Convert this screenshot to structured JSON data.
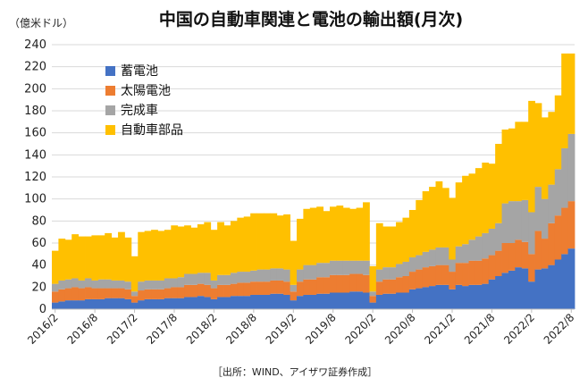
{
  "chart_data": {
    "type": "bar",
    "stacked": true,
    "title": "中国の自動車関連と電池の輸出額(月次)",
    "unit_label": "（億米ドル）",
    "source": "［出所：WIND、アイザワ証券作成］",
    "ylim": [
      0,
      240
    ],
    "yticks": [
      0,
      20,
      40,
      60,
      80,
      100,
      120,
      140,
      160,
      180,
      200,
      220,
      240
    ],
    "xtick_labels": [
      "2016/2",
      "2016/8",
      "2017/2",
      "2017/8",
      "2018/2",
      "2018/8",
      "2019/2",
      "2019/8",
      "2020/2",
      "2020/8",
      "2021/2",
      "2021/8",
      "2022/2",
      "2022/8"
    ],
    "grid": true,
    "legend_position": "top-left",
    "colors": {
      "battery": "#4472c4",
      "solar": "#ed7d31",
      "vehicle": "#a5a5a5",
      "parts": "#ffc000"
    },
    "x": [
      "2016/2",
      "2016/3",
      "2016/4",
      "2016/5",
      "2016/6",
      "2016/7",
      "2016/8",
      "2016/9",
      "2016/10",
      "2016/11",
      "2016/12",
      "2017/1",
      "2017/2",
      "2017/3",
      "2017/4",
      "2017/5",
      "2017/6",
      "2017/7",
      "2017/8",
      "2017/9",
      "2017/10",
      "2017/11",
      "2017/12",
      "2018/1",
      "2018/2",
      "2018/3",
      "2018/4",
      "2018/5",
      "2018/6",
      "2018/7",
      "2018/8",
      "2018/9",
      "2018/10",
      "2018/11",
      "2018/12",
      "2019/1",
      "2019/2",
      "2019/3",
      "2019/4",
      "2019/5",
      "2019/6",
      "2019/7",
      "2019/8",
      "2019/9",
      "2019/10",
      "2019/11",
      "2019/12",
      "2020/1",
      "2020/2",
      "2020/3",
      "2020/4",
      "2020/5",
      "2020/6",
      "2020/7",
      "2020/8",
      "2020/9",
      "2020/10",
      "2020/11",
      "2020/12",
      "2021/1",
      "2021/2",
      "2021/3",
      "2021/4",
      "2021/5",
      "2021/6",
      "2021/7",
      "2021/8",
      "2021/9",
      "2021/10",
      "2021/11",
      "2021/12",
      "2022/1",
      "2022/2",
      "2022/3",
      "2022/4",
      "2022/5",
      "2022/6",
      "2022/7",
      "2022/8"
    ],
    "series": [
      {
        "name": "蓄電池",
        "key": "battery",
        "values": [
          6,
          7,
          8,
          8,
          8,
          9,
          9,
          9,
          10,
          10,
          10,
          9,
          6,
          8,
          9,
          9,
          9,
          10,
          10,
          10,
          11,
          11,
          12,
          11,
          9,
          11,
          11,
          12,
          12,
          12,
          13,
          13,
          13,
          14,
          14,
          13,
          8,
          12,
          13,
          13,
          14,
          14,
          15,
          15,
          15,
          16,
          16,
          15,
          6,
          13,
          14,
          14,
          15,
          15,
          18,
          19,
          20,
          21,
          22,
          22,
          18,
          22,
          21,
          22,
          22,
          23,
          27,
          30,
          33,
          35,
          38,
          37,
          25,
          36,
          37,
          40,
          45,
          50,
          55
        ]
      },
      {
        "name": "太陽電池",
        "key": "solar",
        "values": [
          10,
          11,
          11,
          12,
          11,
          11,
          10,
          10,
          9,
          9,
          9,
          9,
          6,
          9,
          9,
          9,
          9,
          9,
          10,
          10,
          11,
          11,
          11,
          11,
          10,
          11,
          11,
          11,
          12,
          12,
          12,
          12,
          12,
          12,
          12,
          12,
          8,
          13,
          14,
          14,
          15,
          15,
          16,
          16,
          16,
          16,
          16,
          16,
          6,
          12,
          13,
          13,
          14,
          15,
          16,
          17,
          18,
          18,
          18,
          18,
          16,
          20,
          21,
          22,
          22,
          23,
          22,
          23,
          27,
          25,
          25,
          24,
          25,
          35,
          27,
          38,
          40,
          42,
          43
        ]
      },
      {
        "name": "完成車",
        "key": "vehicle",
        "values": [
          7,
          8,
          8,
          8,
          7,
          8,
          7,
          8,
          8,
          7,
          7,
          7,
          4,
          8,
          8,
          8,
          8,
          9,
          8,
          9,
          10,
          10,
          10,
          11,
          7,
          9,
          9,
          10,
          10,
          10,
          10,
          11,
          11,
          11,
          11,
          11,
          6,
          11,
          13,
          13,
          13,
          13,
          13,
          13,
          13,
          12,
          12,
          13,
          4,
          11,
          11,
          11,
          12,
          13,
          13,
          13,
          14,
          15,
          16,
          16,
          11,
          15,
          17,
          19,
          22,
          23,
          24,
          25,
          36,
          38,
          35,
          38,
          38,
          40,
          36,
          35,
          42,
          54,
          61
        ]
      },
      {
        "name": "自動車部品",
        "key": "parts",
        "values": [
          30,
          38,
          36,
          40,
          40,
          38,
          41,
          40,
          42,
          39,
          44,
          40,
          32,
          45,
          45,
          46,
          45,
          44,
          48,
          46,
          44,
          42,
          44,
          46,
          46,
          48,
          45,
          47,
          49,
          50,
          52,
          51,
          51,
          50,
          48,
          50,
          40,
          46,
          51,
          52,
          51,
          47,
          49,
          50,
          48,
          47,
          48,
          53,
          23,
          42,
          37,
          37,
          38,
          40,
          43,
          50,
          55,
          57,
          60,
          54,
          56,
          58,
          62,
          60,
          62,
          64,
          59,
          72,
          67,
          66,
          72,
          71,
          101,
          76,
          74,
          66,
          67,
          86,
          73
        ]
      }
    ],
    "legend": [
      "蓄電池",
      "太陽電池",
      "完成車",
      "自動車部品"
    ]
  }
}
